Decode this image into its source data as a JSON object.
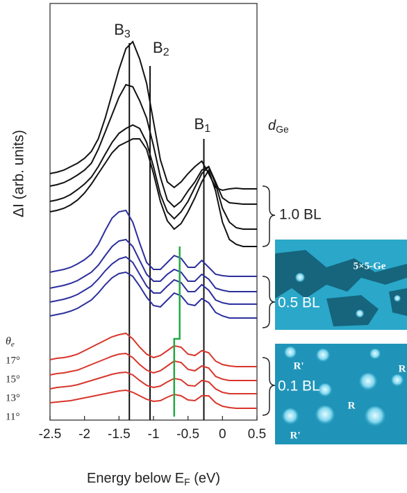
{
  "chart_data": {
    "type": "line",
    "ylabel": "ΔI (arb. units)",
    "xlabel": {
      "text": "Energy below E",
      "sub": "F",
      "suffix": " (eV)"
    },
    "xlim": [
      -2.5,
      0.5
    ],
    "xticks": [
      -2.5,
      -2,
      -1.5,
      -1,
      -0.5,
      0,
      0.5
    ],
    "ylim": [
      0,
      600
    ],
    "x": [
      -2.5,
      -2.4,
      -2.3,
      -2.2,
      -2.1,
      -2.0,
      -1.9,
      -1.8,
      -1.7,
      -1.6,
      -1.5,
      -1.4,
      -1.3,
      -1.2,
      -1.1,
      -1.0,
      -0.9,
      -0.8,
      -0.7,
      -0.6,
      -0.5,
      -0.4,
      -0.3,
      -0.2,
      -0.1,
      0,
      0.1,
      0.2,
      0.3,
      0.4,
      0.5
    ],
    "series": [
      {
        "color": "#111111",
        "values": [
          355,
          357,
          360,
          365,
          370,
          377,
          387,
          405,
          435,
          470,
          505,
          535,
          545,
          520,
          485,
          430,
          375,
          343,
          335,
          343,
          355,
          365,
          373,
          355,
          335,
          331,
          333,
          334,
          333,
          333,
          333
        ]
      },
      {
        "color": "#111111",
        "values": [
          337,
          339,
          342,
          347,
          353,
          360,
          370,
          390,
          415,
          440,
          465,
          483,
          480,
          460,
          435,
          395,
          350,
          317,
          307,
          315,
          330,
          343,
          360,
          365,
          343,
          320,
          313,
          312,
          311,
          311,
          311
        ]
      },
      {
        "color": "#111111",
        "values": [
          315,
          317,
          320,
          325,
          332,
          340,
          350,
          365,
          383,
          400,
          413,
          420,
          425,
          420,
          400,
          365,
          325,
          300,
          290,
          300,
          315,
          335,
          355,
          365,
          340,
          305,
          285,
          277,
          275,
          275,
          275
        ]
      },
      {
        "color": "#111111",
        "values": [
          300,
          302,
          305,
          310,
          317,
          327,
          340,
          355,
          370,
          385,
          395,
          400,
          405,
          405,
          390,
          355,
          315,
          287,
          275,
          283,
          300,
          320,
          343,
          360,
          330,
          285,
          260,
          253,
          250,
          250,
          250
        ]
      },
      {
        "color": "#2b2f9c",
        "values": [
          213,
          215,
          217,
          220,
          225,
          231,
          239,
          253,
          273,
          291,
          300,
          302,
          285,
          255,
          227,
          217,
          217,
          227,
          237,
          233,
          220,
          220,
          230,
          220,
          210,
          208,
          207,
          207,
          207,
          207,
          207
        ]
      },
      {
        "color": "#2b2f9c",
        "values": [
          190,
          192,
          194,
          197,
          201,
          207,
          213,
          223,
          237,
          250,
          258,
          260,
          250,
          230,
          210,
          200,
          200,
          210,
          217,
          213,
          200,
          200,
          210,
          203,
          190,
          187,
          185,
          185,
          185,
          185,
          185
        ]
      },
      {
        "color": "#2b2f9c",
        "values": [
          170,
          172,
          174,
          177,
          181,
          187,
          193,
          203,
          215,
          225,
          232,
          235,
          227,
          210,
          193,
          183,
          183,
          193,
          202,
          198,
          185,
          185,
          195,
          187,
          173,
          169,
          167,
          167,
          167,
          167,
          167
        ]
      },
      {
        "color": "#2b2f9c",
        "values": [
          150,
          152,
          154,
          157,
          161,
          167,
          173,
          183,
          195,
          205,
          211,
          213,
          207,
          193,
          177,
          165,
          163,
          173,
          183,
          179,
          167,
          165,
          175,
          169,
          155,
          150,
          147,
          147,
          147,
          147,
          147
        ]
      },
      {
        "color": "#d8352b",
        "values": [
          87,
          89,
          90,
          92,
          95,
          100,
          105,
          110,
          115,
          120,
          123,
          125,
          117,
          105,
          95,
          90,
          93,
          100,
          107,
          105,
          95,
          93,
          100,
          97,
          85,
          80,
          78,
          77,
          77,
          77,
          77
        ]
      },
      {
        "color": "#d8352b",
        "values": [
          65,
          67,
          68,
          70,
          72,
          76,
          80,
          84,
          88,
          92,
          95,
          96,
          90,
          80,
          72,
          68,
          71,
          78,
          85,
          83,
          73,
          71,
          78,
          75,
          63,
          59,
          57,
          57,
          57,
          57,
          57
        ]
      },
      {
        "color": "#d8352b",
        "values": [
          45,
          47,
          48,
          49,
          51,
          54,
          57,
          60,
          63,
          66,
          68,
          69,
          65,
          57,
          50,
          47,
          49,
          55,
          60,
          58,
          50,
          49,
          57,
          55,
          45,
          40,
          38,
          38,
          38,
          38,
          38
        ]
      },
      {
        "color": "#d8352b",
        "values": [
          25,
          26,
          27,
          28,
          30,
          32,
          34,
          36,
          38,
          40,
          42,
          43,
          40,
          35,
          30,
          27,
          28,
          33,
          37,
          35,
          29,
          28,
          35,
          35,
          25,
          20,
          18,
          17,
          17,
          17,
          17
        ]
      }
    ],
    "ref_lines": [
      {
        "label": "B",
        "sub": "3",
        "x": -1.35
      },
      {
        "label": "B",
        "sub": "2",
        "x": -1.05
      },
      {
        "label": "B",
        "sub": "1",
        "x": -0.27
      }
    ],
    "green_line": {
      "color": "#22aa44",
      "x": [
        -0.62,
        -0.62,
        -0.7,
        -0.7
      ],
      "y": [
        250,
        117,
        117,
        5
      ]
    },
    "angle_header": "θ",
    "angle_header_sub": "e",
    "angle_labels": [
      "17°",
      "15°",
      "13°",
      "11°"
    ],
    "thickness_label": {
      "text": "d",
      "sub": "Ge"
    },
    "coverage_labels": [
      "1.0 BL",
      "0.5 BL",
      "0.1 BL"
    ],
    "image_labels": {
      "top": "5×5-Ge",
      "bottom": [
        "R'",
        "R",
        "R",
        "R'"
      ]
    }
  }
}
